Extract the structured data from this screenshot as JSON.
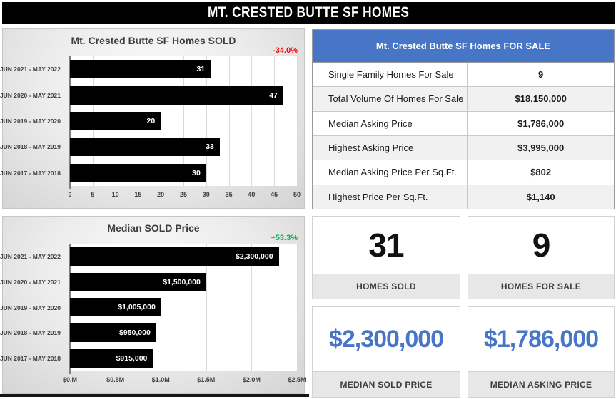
{
  "header": {
    "title": "MT. CRESTED BUTTE SF HOMES"
  },
  "colors": {
    "accent_blue": "#4876c7",
    "negative_red": "#ff0000",
    "positive_green": "#00b050",
    "bar_black": "#000000"
  },
  "chart_data": [
    {
      "type": "bar",
      "orientation": "horizontal",
      "title": "Mt. Crested Butte SF Homes SOLD",
      "change_label": "-34.0%",
      "change_color": "#ff0000",
      "categories": [
        "JUN 2021 - MAY 2022",
        "JUN 2020 - MAY 2021",
        "JUN 2019 - MAY 2020",
        "JUN 2018 - MAY 2019",
        "JUN 2017 - MAY 2018"
      ],
      "values": [
        31,
        47,
        20,
        33,
        30
      ],
      "value_labels": [
        "31",
        "47",
        "20",
        "33",
        "30"
      ],
      "xlim": [
        0,
        50
      ],
      "tick_values": [
        0,
        5,
        10,
        15,
        20,
        25,
        30,
        35,
        40,
        45,
        50
      ],
      "tick_labels": [
        "0",
        "5",
        "10",
        "15",
        "20",
        "25",
        "30",
        "35",
        "40",
        "45",
        "50"
      ],
      "grid": true,
      "legend": false,
      "bar_color": "#000000",
      "bar_label_color": "#ffffff"
    },
    {
      "type": "bar",
      "orientation": "horizontal",
      "title": "Median SOLD Price",
      "change_label": "+53.3%",
      "change_color": "#00b050",
      "categories": [
        "JUN 2021 - MAY 2022",
        "JUN 2020 - MAY 2021",
        "JUN 2019 - MAY 2020",
        "JUN 2018 - MAY 2019",
        "JUN 2017 - MAY 2018"
      ],
      "values": [
        2300000,
        1500000,
        1005000,
        950000,
        915000
      ],
      "value_labels": [
        "$2,300,000",
        "$1,500,000",
        "$1,005,000",
        "$950,000",
        "$915,000"
      ],
      "xlim": [
        0,
        2500000
      ],
      "tick_values": [
        0,
        500000,
        1000000,
        1500000,
        2000000,
        2500000
      ],
      "tick_labels": [
        "$0.M",
        "$0.5M",
        "$1.0M",
        "$1.5M",
        "$2.0M",
        "$2.5M"
      ],
      "grid": true,
      "legend": false,
      "bar_color": "#000000",
      "bar_label_color": "#ffffff"
    }
  ],
  "table": {
    "title": "Mt. Crested Butte SF Homes FOR SALE",
    "rows": [
      {
        "label": "Single Family Homes For Sale",
        "value": "9"
      },
      {
        "label": "Total Volume Of Homes For Sale",
        "value": "$18,150,000"
      },
      {
        "label": "Median Asking Price",
        "value": "$1,786,000"
      },
      {
        "label": "Highest Asking Price",
        "value": "$3,995,000"
      },
      {
        "label": "Median Asking Price Per Sq.Ft.",
        "value": "$802"
      },
      {
        "label": "Highest Price Per Sq.Ft.",
        "value": "$1,140"
      }
    ]
  },
  "cards": [
    {
      "value": "31",
      "label": "HOMES SOLD",
      "value_color": "#111111"
    },
    {
      "value": "9",
      "label": "HOMES FOR SALE",
      "value_color": "#111111"
    },
    {
      "value": "$2,300,000",
      "label": "MEDIAN SOLD PRICE",
      "value_color": "#4876c7"
    },
    {
      "value": "$1,786,000",
      "label": "MEDIAN ASKING PRICE",
      "value_color": "#4876c7"
    }
  ]
}
